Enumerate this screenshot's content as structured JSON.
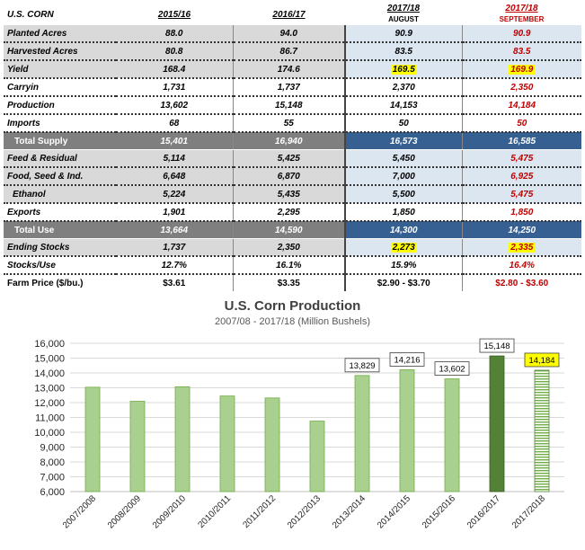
{
  "table": {
    "header": {
      "label": "U.S. CORN",
      "col1": "2015/16",
      "col2": "2016/17",
      "col3": "2017/18",
      "col3_sub": "AUGUST",
      "col4": "2017/18",
      "col4_sub": "SEPTEMBER"
    },
    "rows": [
      {
        "label": "Planted Acres",
        "v1": "88.0",
        "v2": "94.0",
        "v3": "90.9",
        "v4": "90.9"
      },
      {
        "label": "Harvested Acres",
        "v1": "80.8",
        "v2": "86.7",
        "v3": "83.5",
        "v4": "83.5"
      },
      {
        "label": "Yield",
        "v1": "168.4",
        "v2": "174.6",
        "v3": "169.5",
        "v4": "169.9"
      },
      {
        "label": "Carryin",
        "v1": "1,731",
        "v2": "1,737",
        "v3": "2,370",
        "v4": "2,350"
      },
      {
        "label": "Production",
        "v1": "13,602",
        "v2": "15,148",
        "v3": "14,153",
        "v4": "14,184"
      },
      {
        "label": "Imports",
        "v1": "68",
        "v2": "55",
        "v3": "50",
        "v4": "50"
      },
      {
        "label": "Total Supply",
        "v1": "15,401",
        "v2": "16,940",
        "v3": "16,573",
        "v4": "16,585"
      },
      {
        "label": "Feed & Residual",
        "v1": "5,114",
        "v2": "5,425",
        "v3": "5,450",
        "v4": "5,475"
      },
      {
        "label": "Food, Seed & Ind.",
        "v1": "6,648",
        "v2": "6,870",
        "v3": "7,000",
        "v4": "6,925"
      },
      {
        "label": "Ethanol",
        "v1": "5,224",
        "v2": "5,435",
        "v3": "5,500",
        "v4": "5,475"
      },
      {
        "label": "Exports",
        "v1": "1,901",
        "v2": "2,295",
        "v3": "1,850",
        "v4": "1,850"
      },
      {
        "label": "Total Use",
        "v1": "13,664",
        "v2": "14,590",
        "v3": "14,300",
        "v4": "14,250"
      },
      {
        "label": "Ending Stocks",
        "v1": "1,737",
        "v2": "2,350",
        "v3": "2,273",
        "v4": "2,335"
      },
      {
        "label": "Stocks/Use",
        "v1": "12.7%",
        "v2": "16.1%",
        "v3": "15.9%",
        "v4": "16.4%"
      },
      {
        "label": "Farm Price ($/bu.)",
        "v1": "$3.61",
        "v2": "$3.35",
        "v3": "$2.90 - $3.70",
        "v4": "$2.80 - $3.60"
      }
    ]
  },
  "chart_data": {
    "type": "bar",
    "title": "U.S. Corn Production",
    "subtitle": "2007/08 - 2017/18 (Million Bushels)",
    "categories": [
      "2007/2008",
      "2008/2009",
      "2009/2010",
      "2010/2011",
      "2011/2012",
      "2012/2013",
      "2013/2014",
      "2014/2015",
      "2015/2016",
      "2016/2017",
      "2017/2018"
    ],
    "values": [
      13038,
      12092,
      13067,
      12447,
      12314,
      10755,
      13829,
      14216,
      13602,
      15148,
      14184
    ],
    "data_labels": [
      "",
      "",
      "",
      "",
      "",
      "",
      "13,829",
      "14,216",
      "13,602",
      "15,148",
      "14,184"
    ],
    "ylim": [
      6000,
      16000
    ],
    "yticks": [
      6000,
      7000,
      8000,
      9000,
      10000,
      11000,
      12000,
      13000,
      14000,
      15000,
      16000
    ],
    "ytick_labels": [
      "6,000",
      "7,000",
      "8,000",
      "9,000",
      "10,000",
      "11,000",
      "12,000",
      "13,000",
      "14,000",
      "15,000",
      "16,000"
    ],
    "grid": true,
    "colors": {
      "bar": "#a9d08e",
      "bar_2016": "#548235",
      "bar_2017_hatch": "#70ad47",
      "highlight": "#ffff00",
      "grid": "#d9d9d9"
    },
    "xlabel": "",
    "ylabel": ""
  }
}
